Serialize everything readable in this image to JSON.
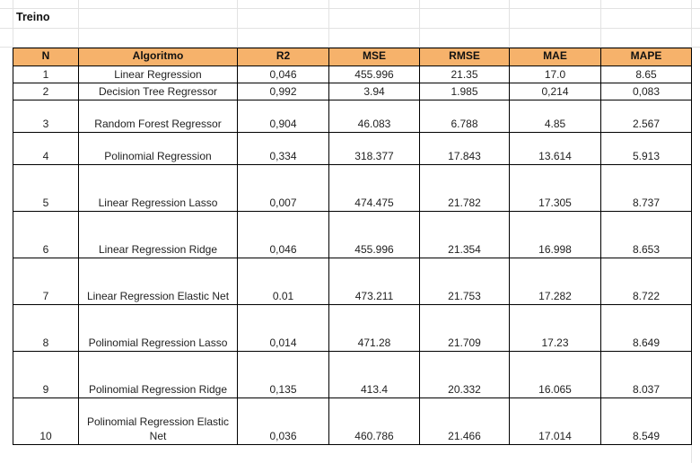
{
  "sheet": {
    "title": "Treino"
  },
  "table": {
    "headers": [
      "N",
      "Algoritmo",
      "R2",
      "MSE",
      "RMSE",
      "MAE",
      "MAPE"
    ],
    "rows": [
      {
        "n": "1",
        "algo": "Linear Regression",
        "r2": "0,046",
        "mse": "455.996",
        "rmse": "21.35",
        "mae": "17.0",
        "mape": "8.65"
      },
      {
        "n": "2",
        "algo": "Decision Tree Regressor",
        "r2": "0,992",
        "mse": "3.94",
        "rmse": "1.985",
        "mae": "0,214",
        "mape": "0,083"
      },
      {
        "n": "3",
        "algo": "Random Forest\nRegressor",
        "r2": "0,904",
        "mse": "46.083",
        "rmse": "6.788",
        "mae": "4.85",
        "mape": "2.567"
      },
      {
        "n": "4",
        "algo": "Polinomial\nRegression",
        "r2": "0,334",
        "mse": "318.377",
        "rmse": "17.843",
        "mae": "13.614",
        "mape": "5.913"
      },
      {
        "n": "5",
        "algo": "Linear\nRegression\nLasso",
        "r2": "0,007",
        "mse": "474.475",
        "rmse": "21.782",
        "mae": "17.305",
        "mape": "8.737"
      },
      {
        "n": "6",
        "algo": "Linear\nRegression\nRidge",
        "r2": "0,046",
        "mse": "455.996",
        "rmse": "21.354",
        "mae": "16.998",
        "mape": "8.653"
      },
      {
        "n": "7",
        "algo": "Linear\nRegression\nElastic Net",
        "r2": "0.01",
        "mse": "473.211",
        "rmse": "21.753",
        "mae": "17.282",
        "mape": "8.722"
      },
      {
        "n": "8",
        "algo": "Polinomial\nRegression\nLasso",
        "r2": "0,014",
        "mse": "471.28",
        "rmse": "21.709",
        "mae": "17.23",
        "mape": "8.649"
      },
      {
        "n": "9",
        "algo": "Polinomial\nRegression\nRidge",
        "r2": "0,135",
        "mse": "413.4",
        "rmse": "20.332",
        "mae": "16.065",
        "mape": "8.037"
      },
      {
        "n": "10",
        "algo": "Polinomial\nRegression\nElastic Net",
        "r2": "0,036",
        "mse": "460.786",
        "rmse": "21.466",
        "mae": "17.014",
        "mape": "8.549"
      }
    ]
  },
  "colors": {
    "header_fill": "#f6b26b",
    "gridline": "#e2e2e2",
    "border": "#000000"
  }
}
